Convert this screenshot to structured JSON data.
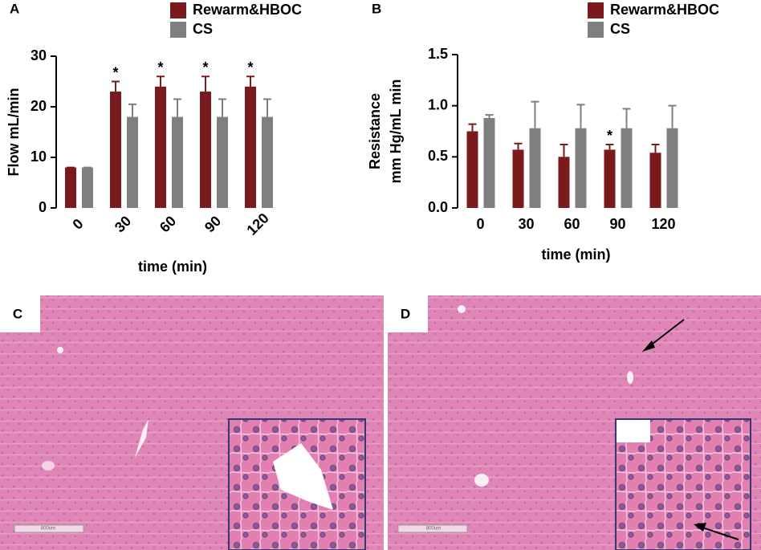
{
  "chart_data": [
    {
      "type": "bar",
      "panel": "A",
      "ylabel": [
        "Flow mL/min"
      ],
      "xlabel": "time (min)",
      "categories": [
        "0",
        "30",
        "60",
        "90",
        "120"
      ],
      "xtick_rotation": -45,
      "series": [
        {
          "name": "Rewarm&HBOC",
          "color": "#7b1a1c",
          "values": [
            8,
            23,
            24,
            23,
            24
          ],
          "errors": [
            0,
            2,
            2,
            3,
            2
          ],
          "markers": [
            null,
            "*",
            "*",
            "*",
            "*"
          ]
        },
        {
          "name": "CS",
          "color": "#7f7f7f",
          "values": [
            8,
            18,
            18,
            18,
            18
          ],
          "errors": [
            0,
            2.5,
            3.5,
            3.5,
            3.5
          ]
        }
      ],
      "ylim": [
        0,
        30
      ],
      "yticks": [
        0,
        10,
        20,
        30
      ]
    },
    {
      "type": "bar",
      "panel": "B",
      "ylabel": [
        "Resistance",
        "mm Hg/mL min"
      ],
      "xlabel": "time (min)",
      "categories": [
        "0",
        "30",
        "60",
        "90",
        "120"
      ],
      "xtick_rotation": 0,
      "series": [
        {
          "name": "Rewarm&HBOC",
          "color": "#7b1a1c",
          "values": [
            0.75,
            0.57,
            0.5,
            0.57,
            0.54
          ],
          "errors": [
            0.07,
            0.06,
            0.12,
            0.05,
            0.08
          ],
          "markers": [
            null,
            null,
            null,
            "*",
            null
          ]
        },
        {
          "name": "CS",
          "color": "#7f7f7f",
          "values": [
            0.88,
            0.78,
            0.78,
            0.78,
            0.78
          ],
          "errors": [
            0.03,
            0.26,
            0.23,
            0.19,
            0.22
          ]
        }
      ],
      "ylim": [
        0,
        1.5
      ],
      "yticks": [
        {
          "value": 0,
          "label": "0.0"
        },
        0.5,
        {
          "value": 1,
          "label": "1.0"
        },
        1.5
      ]
    }
  ],
  "images": [
    {
      "panel": "C",
      "scale_bar": "800um"
    },
    {
      "panel": "D",
      "scale_bar": "800um"
    }
  ]
}
